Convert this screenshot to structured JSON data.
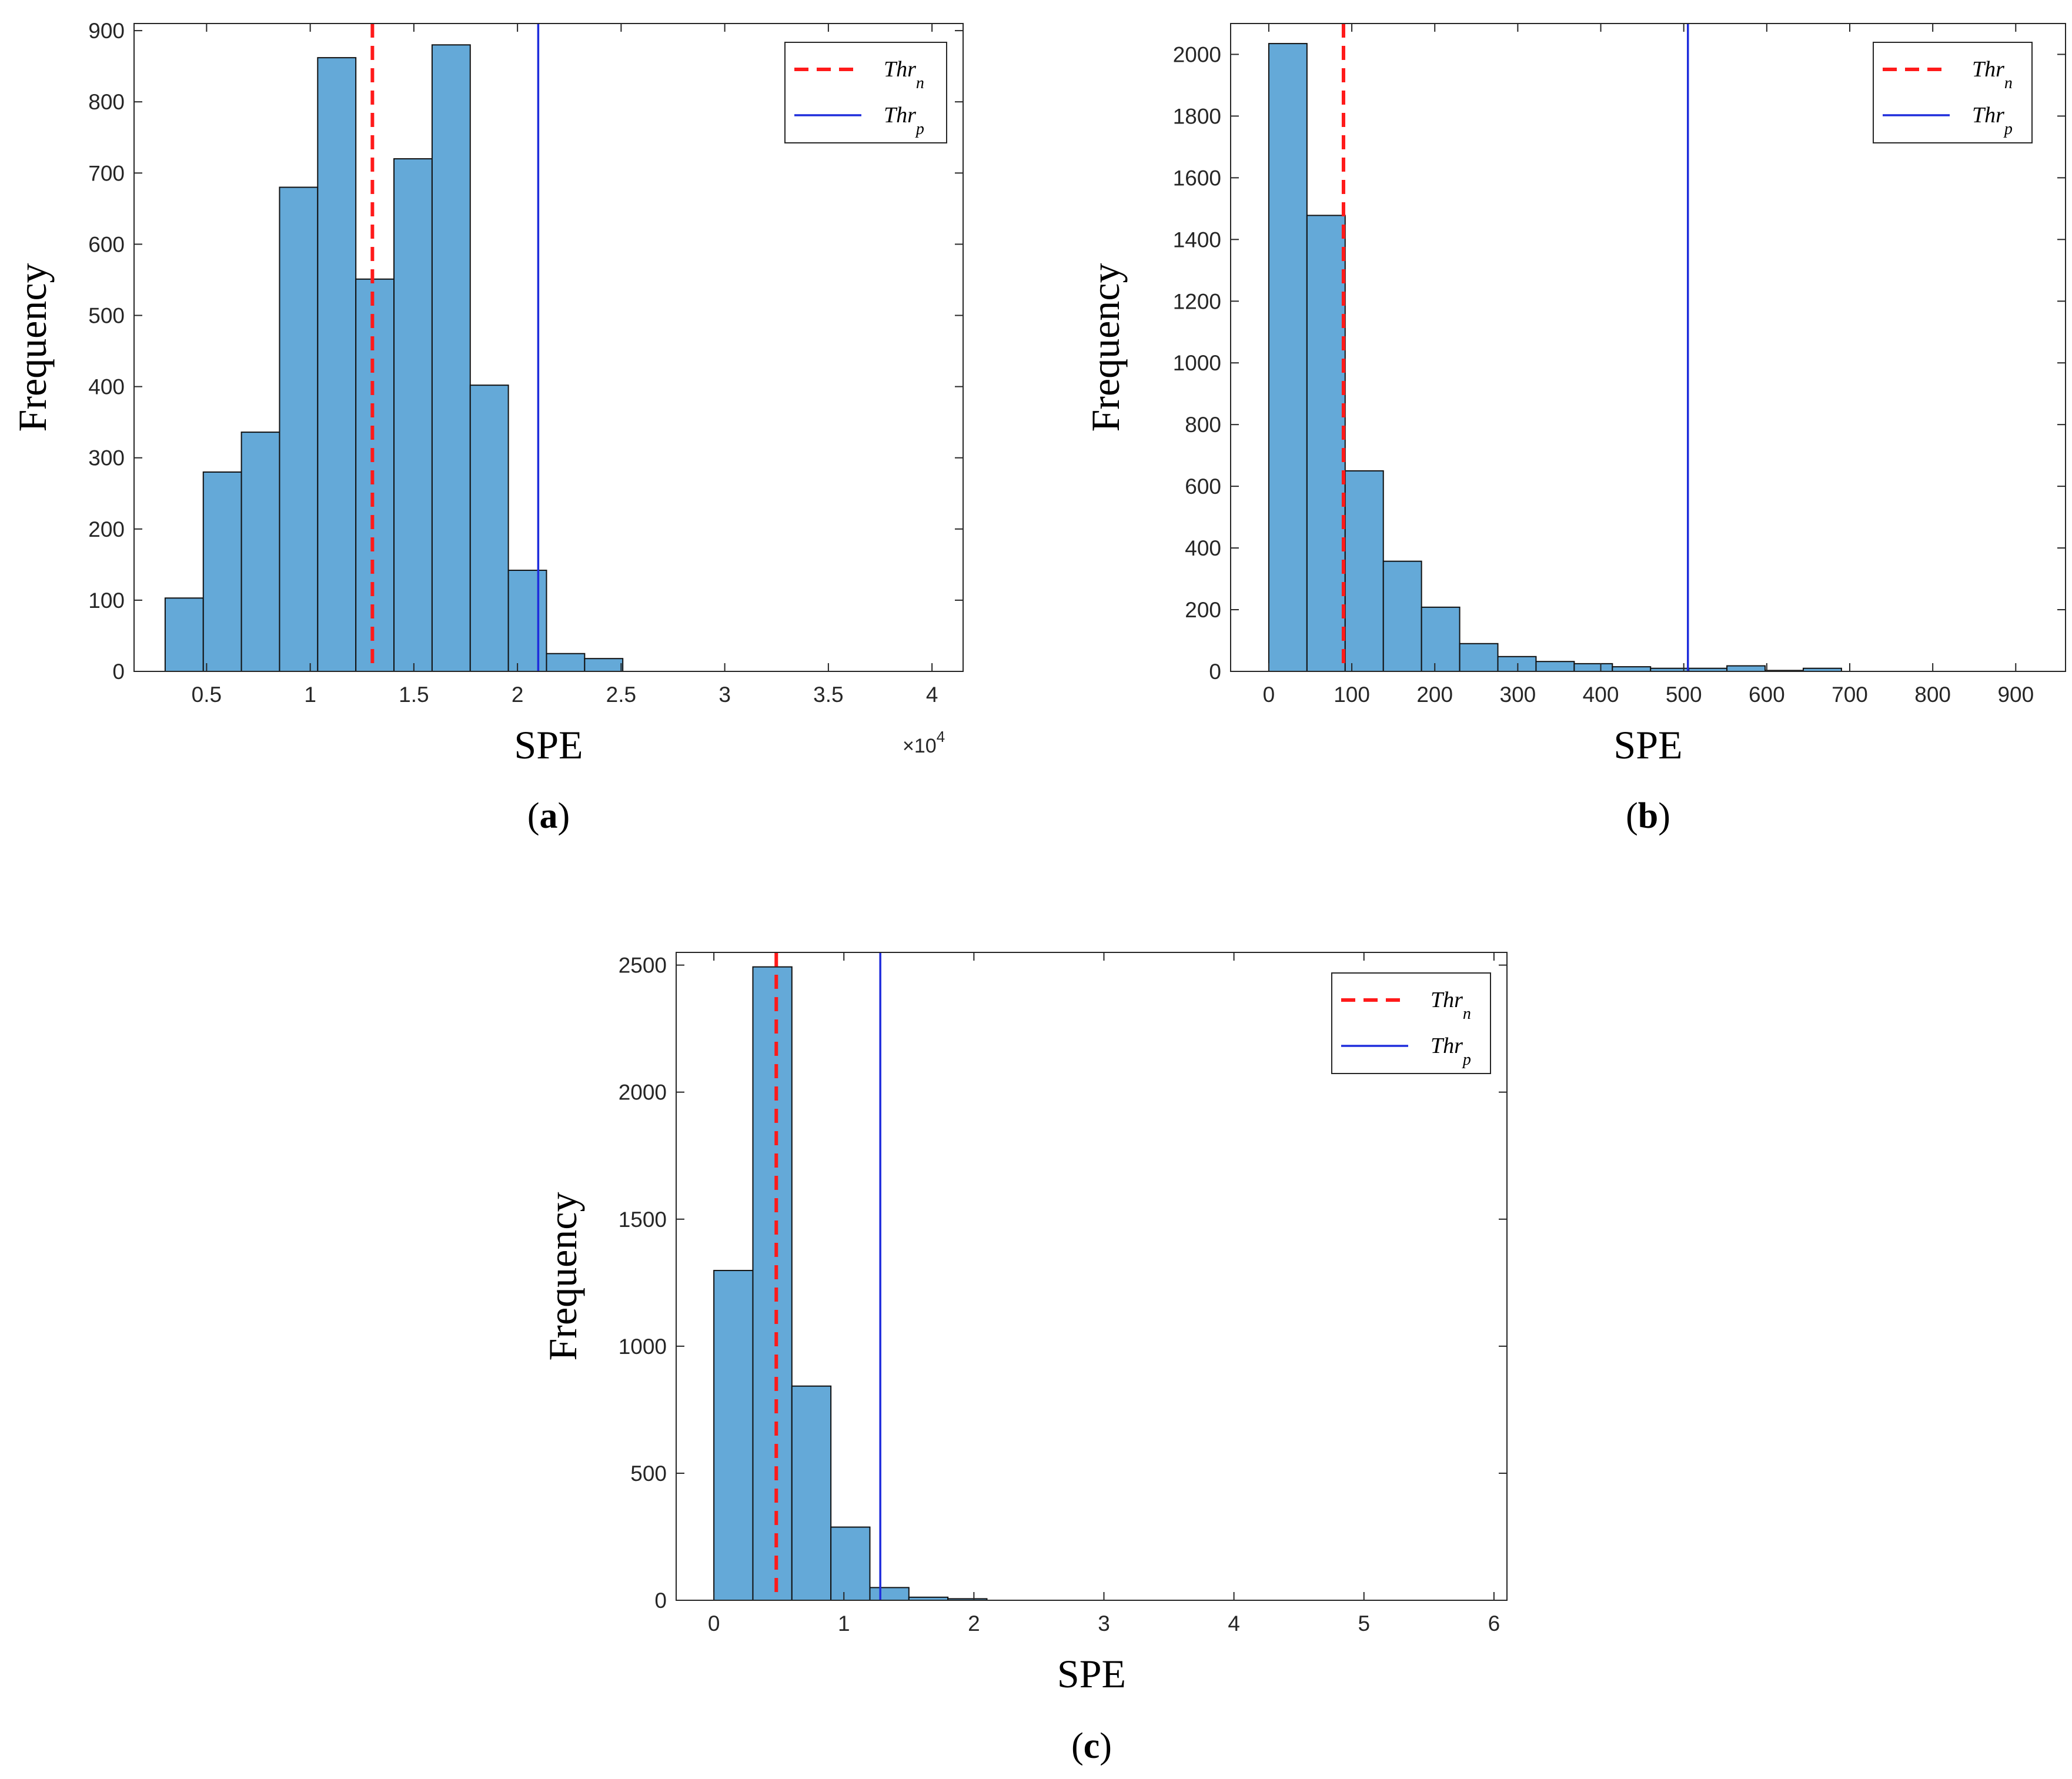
{
  "figure": {
    "panels": [
      "a",
      "b",
      "c"
    ]
  },
  "chart_data": [
    {
      "panel": "a",
      "type": "bar",
      "subtitle": "a",
      "xlabel": "SPE",
      "ylabel": "Frequency",
      "x_exponent_label": "×10",
      "x_exponent_power": "4",
      "x_multiplier": 10000,
      "xlim": [
        0.15,
        4.15
      ],
      "ylim": [
        0,
        910
      ],
      "xticks": [
        0.5,
        1,
        1.5,
        2,
        2.5,
        3,
        3.5,
        4
      ],
      "xtick_labels": [
        "0.5",
        "1",
        "1.5",
        "2",
        "2.5",
        "3",
        "3.5",
        "4"
      ],
      "yticks": [
        0,
        100,
        200,
        300,
        400,
        500,
        600,
        700,
        800,
        900
      ],
      "ytick_labels": [
        "0",
        "100",
        "200",
        "300",
        "400",
        "500",
        "600",
        "700",
        "800",
        "900"
      ],
      "bin_edges": [
        0.3,
        0.484,
        0.668,
        0.852,
        1.036,
        1.22,
        1.404,
        1.588,
        1.772,
        1.956,
        2.14,
        2.324,
        2.508
      ],
      "values": [
        103,
        280,
        336,
        680,
        862,
        551,
        720,
        880,
        402,
        142,
        25,
        18
      ],
      "thr_n": 1.3,
      "thr_p": 2.1,
      "legend": {
        "items": [
          {
            "base": "Thr",
            "sub": "n",
            "style": "dashed",
            "color": "#ff1a1a"
          },
          {
            "base": "Thr",
            "sub": "p",
            "style": "solid",
            "color": "#1f2ddc"
          }
        ],
        "location": "top-right"
      },
      "bar_color": "#64a9d8"
    },
    {
      "panel": "b",
      "type": "bar",
      "subtitle": "b",
      "xlabel": "SPE",
      "ylabel": "Frequency",
      "xlim": [
        -46,
        960
      ],
      "ylim": [
        0,
        2100
      ],
      "xticks": [
        0,
        100,
        200,
        300,
        400,
        500,
        600,
        700,
        800,
        900
      ],
      "xtick_labels": [
        "0",
        "100",
        "200",
        "300",
        "400",
        "500",
        "600",
        "700",
        "800",
        "900"
      ],
      "yticks": [
        0,
        200,
        400,
        600,
        800,
        1000,
        1200,
        1400,
        1600,
        1800,
        2000
      ],
      "ytick_labels": [
        "0",
        "200",
        "400",
        "600",
        "800",
        "1000",
        "1200",
        "1400",
        "1600",
        "1800",
        "2000"
      ],
      "bin_edges": [
        0,
        46,
        92,
        138,
        184,
        230,
        276,
        322,
        368,
        414,
        460,
        506,
        552,
        598,
        644,
        690
      ],
      "values": [
        2035,
        1478,
        650,
        357,
        208,
        90,
        48,
        32,
        25,
        15,
        10,
        10,
        18,
        3,
        10
      ],
      "thr_n": 90,
      "thr_p": 505,
      "legend": {
        "items": [
          {
            "base": "Thr",
            "sub": "n",
            "style": "dashed",
            "color": "#ff1a1a"
          },
          {
            "base": "Thr",
            "sub": "p",
            "style": "solid",
            "color": "#1f2ddc"
          }
        ],
        "location": "top-right"
      },
      "bar_color": "#64a9d8"
    },
    {
      "panel": "c",
      "type": "bar",
      "subtitle": "c",
      "xlabel": "SPE",
      "ylabel": "Frequency",
      "xlim": [
        -0.29,
        6.1
      ],
      "ylim": [
        0,
        2550
      ],
      "xticks": [
        0,
        1,
        2,
        3,
        4,
        5,
        6
      ],
      "xtick_labels": [
        "0",
        "1",
        "2",
        "3",
        "4",
        "5",
        "6"
      ],
      "yticks": [
        0,
        500,
        1000,
        1500,
        2000,
        2500
      ],
      "ytick_labels": [
        "0",
        "500",
        "1000",
        "1500",
        "2000",
        "2500"
      ],
      "bin_edges": [
        0,
        0.3,
        0.6,
        0.9,
        1.2,
        1.5,
        1.8,
        2.1
      ],
      "values": [
        1298,
        2493,
        843,
        288,
        50,
        12,
        6
      ],
      "thr_n": 0.48,
      "thr_p": 1.28,
      "legend": {
        "items": [
          {
            "base": "Thr",
            "sub": "n",
            "style": "dashed",
            "color": "#ff1a1a"
          },
          {
            "base": "Thr",
            "sub": "p",
            "style": "solid",
            "color": "#1f2ddc"
          }
        ],
        "location": "top-right"
      },
      "bar_color": "#64a9d8"
    }
  ]
}
